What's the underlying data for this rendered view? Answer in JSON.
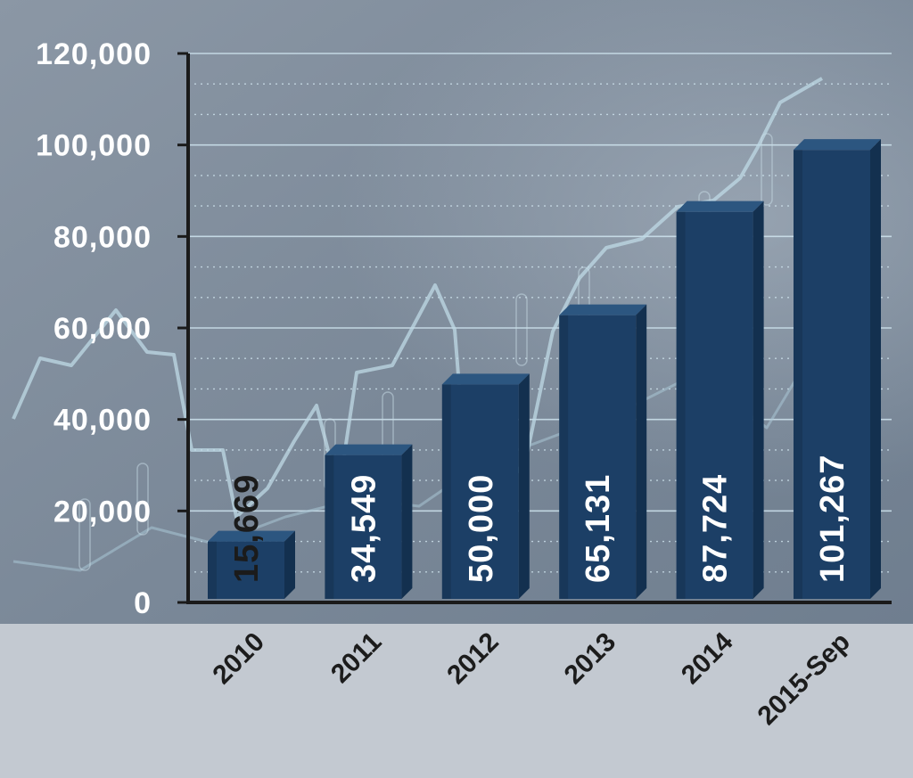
{
  "chart_data": {
    "type": "bar",
    "title": "",
    "xlabel": "",
    "ylabel": "",
    "categories": [
      "2010",
      "2011",
      "2012",
      "2013",
      "2014",
      "2015-Sep"
    ],
    "values": [
      15669,
      34549,
      50000,
      65131,
      87724,
      101267
    ],
    "value_labels": [
      "15,669",
      "34,549",
      "50,000",
      "65,131",
      "87,724",
      "101,267"
    ],
    "ylim": [
      0,
      120000
    ],
    "yticks": [
      0,
      20000,
      40000,
      60000,
      80000,
      100000,
      120000
    ],
    "ytick_labels": [
      "0",
      "20,000",
      "40,000",
      "60,000",
      "80,000",
      "100,000",
      "120,000"
    ],
    "grid": true,
    "legend": "none",
    "colors": {
      "bar_front": "#1c3f66",
      "bar_top": "#2c5680",
      "bar_side": "#13304f",
      "plot_background": "#7d8b9b",
      "axis": "#1a1a1a",
      "gridline": "#cfe4ee"
    }
  }
}
